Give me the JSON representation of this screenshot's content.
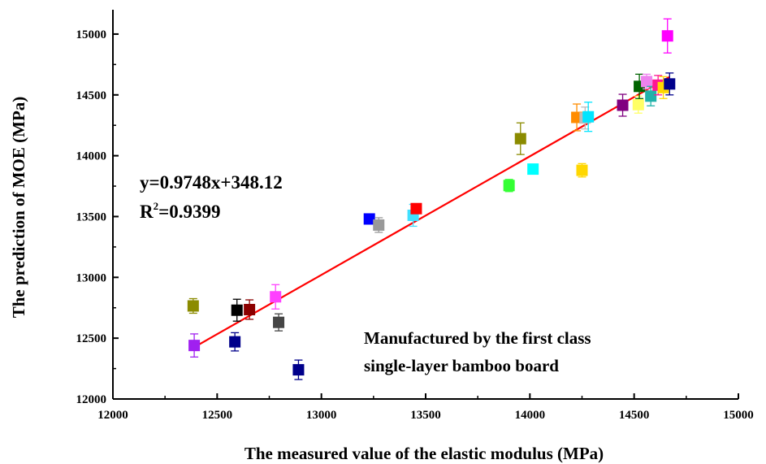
{
  "chart_data": {
    "type": "scatter",
    "title": "",
    "xlabel": "The measured value of the elastic modulus (MPa)",
    "ylabel": "The prediction of MOE (MPa)",
    "xlim": [
      12000,
      15000
    ],
    "ylim": [
      12000,
      15200
    ],
    "x_ticks": [
      12000,
      12500,
      13000,
      13500,
      14000,
      14500,
      15000
    ],
    "y_ticks": [
      12000,
      12500,
      13000,
      13500,
      14000,
      14500,
      15000
    ],
    "x_tick_labels": [
      "12000",
      "12500",
      "13000",
      "13500",
      "14000",
      "14500",
      "15000"
    ],
    "y_tick_labels": [
      "12000",
      "12500",
      "13000",
      "13500",
      "14000",
      "14500",
      "15000"
    ],
    "grid": false,
    "marker": "square",
    "points": [
      {
        "x": 12385,
        "y": 12765,
        "err": 60,
        "color": "#8b8b00"
      },
      {
        "x": 12390,
        "y": 12440,
        "err": 95,
        "color": "#a020f0"
      },
      {
        "x": 12585,
        "y": 12470,
        "err": 75,
        "color": "#00008b"
      },
      {
        "x": 12595,
        "y": 12730,
        "err": 90,
        "color": "#000000"
      },
      {
        "x": 12655,
        "y": 12735,
        "err": 80,
        "color": "#8b0000"
      },
      {
        "x": 12780,
        "y": 12840,
        "err": 100,
        "color": "#ff40ff"
      },
      {
        "x": 12795,
        "y": 12630,
        "err": 70,
        "color": "#454545"
      },
      {
        "x": 12890,
        "y": 12240,
        "err": 80,
        "color": "#00008b"
      },
      {
        "x": 13230,
        "y": 13480,
        "err": 40,
        "color": "#0000ff"
      },
      {
        "x": 13275,
        "y": 13430,
        "err": 60,
        "color": "#999999"
      },
      {
        "x": 13440,
        "y": 13510,
        "err": 90,
        "color": "#40e0ff"
      },
      {
        "x": 13455,
        "y": 13565,
        "err": 40,
        "color": "#ff0000"
      },
      {
        "x": 13900,
        "y": 13755,
        "err": 50,
        "color": "#33ff33"
      },
      {
        "x": 13955,
        "y": 14140,
        "err": 130,
        "color": "#8b8b00"
      },
      {
        "x": 14015,
        "y": 13890,
        "err": 40,
        "color": "#00ffff"
      },
      {
        "x": 14225,
        "y": 14315,
        "err": 110,
        "color": "#ff8c00"
      },
      {
        "x": 14250,
        "y": 13880,
        "err": 55,
        "color": "#ffd700"
      },
      {
        "x": 14265,
        "y": 14310,
        "err": 90,
        "color": "#bbbbbb"
      },
      {
        "x": 14280,
        "y": 14320,
        "err": 120,
        "color": "#00e5ff"
      },
      {
        "x": 14445,
        "y": 14415,
        "err": 90,
        "color": "#800080"
      },
      {
        "x": 14520,
        "y": 14420,
        "err": 70,
        "color": "#ffff66"
      },
      {
        "x": 14525,
        "y": 14570,
        "err": 100,
        "color": "#006400"
      },
      {
        "x": 14560,
        "y": 14610,
        "err": 60,
        "color": "#ee82ee"
      },
      {
        "x": 14580,
        "y": 14490,
        "err": 80,
        "color": "#20b2aa"
      },
      {
        "x": 14615,
        "y": 14580,
        "err": 80,
        "color": "#ff1493"
      },
      {
        "x": 14640,
        "y": 14560,
        "err": 90,
        "color": "#ffd700"
      },
      {
        "x": 14660,
        "y": 14985,
        "err": 140,
        "color": "#ff00ff"
      },
      {
        "x": 14670,
        "y": 14590,
        "err": 90,
        "color": "#00008b"
      }
    ],
    "fit": {
      "slope": 0.9748,
      "intercept": 348.12,
      "x_range": [
        12390,
        14670
      ],
      "color": "#ff0000"
    },
    "annotations": {
      "equation": "y=0.9748x+348.12",
      "r2_prefix": "R",
      "r2_sup": "2",
      "r2_suffix": "=0.9399",
      "note_line1": "Manufactured by the first class",
      "note_line2": "single-layer bamboo board"
    }
  }
}
